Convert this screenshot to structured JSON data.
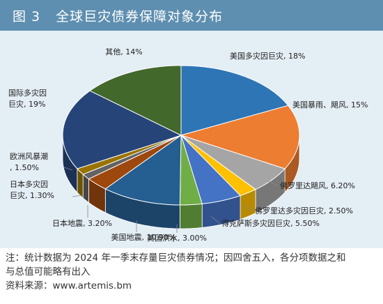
{
  "header": {
    "figure_label": "图 3",
    "title": "全球巨灾债券保障对象分布"
  },
  "chart_data": {
    "type": "pie",
    "title": "全球巨灾债券保障对象分布",
    "slices": [
      {
        "label": "美国多灾因巨灾",
        "value": 18,
        "display": "美国多灾因巨灾, 18%",
        "color": "#2e75b6"
      },
      {
        "label": "美国暴雨、飓风",
        "value": 15,
        "display": "美国暴雨、飓风, 15%",
        "color": "#ed7d31"
      },
      {
        "label": "佛罗里达飓风",
        "value": 6.2,
        "display": "佛罗里达飓风, 6.20%",
        "color": "#a5a5a5"
      },
      {
        "label": "佛罗里达多灾因巨灾",
        "value": 2.5,
        "display": "佛罗里达多灾因巨灾, 2.50%",
        "color": "#ffc000"
      },
      {
        "label": "得克萨斯多灾因巨灾",
        "value": 5.5,
        "display": "得克萨斯多灾因巨灾, 5.50%",
        "color": "#4472c4"
      },
      {
        "label": "美国洪水",
        "value": 3.0,
        "display": "美国洪水, 3.00%",
        "color": "#70ad47"
      },
      {
        "label": "美国地震",
        "value": 10.9,
        "display": "美国地震, 10.90%",
        "color": "#255e91"
      },
      {
        "label": "日本地震",
        "value": 3.2,
        "display": "日本地震, 3.20%",
        "color": "#9e480e"
      },
      {
        "label": "日本多灾因巨灾",
        "value": 1.3,
        "display": "日本多灾因巨灾, 1.30%",
        "color": "#636363"
      },
      {
        "label": "欧洲风暴潮",
        "value": 1.5,
        "display": "欧洲风暴潮, 1.50%",
        "color": "#997300"
      },
      {
        "label": "国际多灾因巨灾",
        "value": 19,
        "display": "国际多灾因巨灾, 19%",
        "color": "#264478"
      },
      {
        "label": "其他",
        "value": 14,
        "display": "其他, 14%",
        "color": "#43682b"
      }
    ]
  },
  "footnote": {
    "line1": "注：统计数据为 2024 年一季末存量巨灾债券情况；因四舍五入，各分项数据之和",
    "line2": "与总值可能略有出入",
    "source": "资料来源：www.artemis.bm"
  }
}
